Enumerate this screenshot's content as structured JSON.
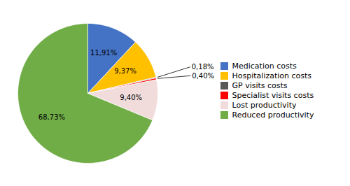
{
  "chart_data": {
    "type": "pie",
    "categories": [
      "Medication costs",
      "Hospitalization costs",
      "GP visits costs",
      "Specialist visits costs",
      "Lost productivity",
      "Reduced productivity"
    ],
    "values": [
      11.91,
      9.37,
      0.18,
      0.4,
      9.4,
      68.73
    ],
    "value_labels": [
      "11,91%",
      "9,37%",
      "0,18%",
      "0,40%",
      "9,40%",
      "68,73%"
    ],
    "colors": [
      "#4472C4",
      "#FFC000",
      "#595959",
      "#FF0000",
      "#F2DCDB",
      "#70AD47"
    ],
    "data_labels": true,
    "legend": "right"
  }
}
